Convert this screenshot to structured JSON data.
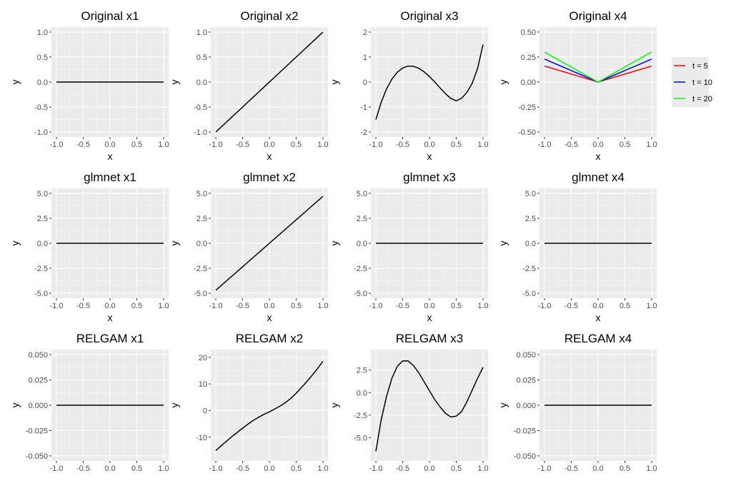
{
  "colors": {
    "panel_bg": "#ebebeb",
    "grid_major": "#ffffff",
    "grid_minor": "#f5f5f5",
    "tick_text": "#4d4d4d",
    "line_default": "#000000",
    "t5": "#ff0000",
    "t10": "#0000ff",
    "t20": "#00ff00"
  },
  "chart_data": [
    {
      "type": "line",
      "title": "Original x1",
      "xlabel": "x",
      "ylabel": "y",
      "xlim": [
        -1.0,
        1.0
      ],
      "ylim": [
        -1.0,
        1.0
      ],
      "xticks": [
        "-1.0",
        "-0.5",
        "0.0",
        "0.5",
        "1.0"
      ],
      "yticks": [
        "-1.0",
        "-0.5",
        "0.0",
        "0.5",
        "1.0"
      ],
      "series": [
        {
          "x": [
            -1.0,
            1.0
          ],
          "y": [
            0,
            0
          ],
          "color": "#000000"
        }
      ]
    },
    {
      "type": "line",
      "title": "Original x2",
      "xlabel": "x",
      "ylabel": "y",
      "xlim": [
        -1.0,
        1.0
      ],
      "ylim": [
        -1.0,
        1.0
      ],
      "xticks": [
        "-1.0",
        "-0.5",
        "0.0",
        "0.5",
        "1.0"
      ],
      "yticks": [
        "-1.0",
        "-0.5",
        "0.0",
        "0.5",
        "1.0"
      ],
      "series": [
        {
          "x": [
            -1.0,
            1.0
          ],
          "y": [
            -1.0,
            1.0
          ],
          "color": "#000000"
        }
      ]
    },
    {
      "type": "line",
      "title": "Original x3",
      "xlabel": "x",
      "ylabel": "y",
      "xlim": [
        -1.0,
        1.0
      ],
      "ylim": [
        -2.0,
        2.0
      ],
      "xticks": [
        "-1.0",
        "-0.5",
        "0.0",
        "0.5",
        "1.0"
      ],
      "yticks": [
        "-2",
        "-1",
        "0",
        "1",
        "2"
      ],
      "series": [
        {
          "x": [
            -1.0,
            -0.9,
            -0.8,
            -0.7,
            -0.6,
            -0.5,
            -0.4,
            -0.3,
            -0.2,
            -0.1,
            0.0,
            0.1,
            0.2,
            0.3,
            0.4,
            0.5,
            0.6,
            0.7,
            0.8,
            0.9,
            1.0
          ],
          "y": [
            -1.5,
            -0.81,
            -0.27,
            0.12,
            0.39,
            0.56,
            0.64,
            0.63,
            0.55,
            0.41,
            0.22,
            0.0,
            -0.24,
            -0.47,
            -0.66,
            -0.75,
            -0.65,
            -0.41,
            -0.04,
            0.56,
            1.5
          ],
          "color": "#000000"
        }
      ]
    },
    {
      "type": "line",
      "title": "Original x4",
      "xlabel": "x",
      "ylabel": "y",
      "xlim": [
        -1.0,
        1.0
      ],
      "ylim": [
        -0.5,
        0.5
      ],
      "xticks": [
        "-1.0",
        "-0.5",
        "0.0",
        "0.5",
        "1.0"
      ],
      "yticks": [
        "-0.50",
        "-0.25",
        "0.00",
        "0.25",
        "0.50"
      ],
      "legend": {
        "position": "right",
        "entries": [
          "t = 5",
          "t = 10",
          "t = 20"
        ]
      },
      "series": [
        {
          "name": "t = 5",
          "x": [
            -1.0,
            0.0,
            1.0
          ],
          "y": [
            0.16,
            0.0,
            0.16
          ],
          "color": "#ff0000"
        },
        {
          "name": "t = 10",
          "x": [
            -1.0,
            0.0,
            1.0
          ],
          "y": [
            0.23,
            0.0,
            0.23
          ],
          "color": "#0000ff"
        },
        {
          "name": "t = 20",
          "x": [
            -1.0,
            0.0,
            1.0
          ],
          "y": [
            0.3,
            0.0,
            0.3
          ],
          "color": "#00ff00"
        }
      ]
    },
    {
      "type": "line",
      "title": "glmnet x1",
      "xlabel": "x",
      "ylabel": "y",
      "xlim": [
        -1.0,
        1.0
      ],
      "ylim": [
        -5.0,
        5.0
      ],
      "xticks": [
        "-1.0",
        "-0.5",
        "0.0",
        "0.5",
        "1.0"
      ],
      "yticks": [
        "-5.0",
        "-2.5",
        "0.0",
        "2.5",
        "5.0"
      ],
      "series": [
        {
          "x": [
            -1.0,
            1.0
          ],
          "y": [
            0,
            0
          ],
          "color": "#000000"
        }
      ]
    },
    {
      "type": "line",
      "title": "glmnet x2",
      "xlabel": "x",
      "ylabel": "y",
      "xlim": [
        -1.0,
        1.0
      ],
      "ylim": [
        -5.0,
        5.0
      ],
      "xticks": [
        "-1.0",
        "-0.5",
        "0.0",
        "0.5",
        "1.0"
      ],
      "yticks": [
        "-5.0",
        "-2.5",
        "0.0",
        "2.5",
        "5.0"
      ],
      "series": [
        {
          "x": [
            -1.0,
            1.0
          ],
          "y": [
            -4.7,
            4.7
          ],
          "color": "#000000"
        }
      ]
    },
    {
      "type": "line",
      "title": "glmnet x3",
      "xlabel": "x",
      "ylabel": "y",
      "xlim": [
        -1.0,
        1.0
      ],
      "ylim": [
        -5.0,
        5.0
      ],
      "xticks": [
        "-1.0",
        "-0.5",
        "0.0",
        "0.5",
        "1.0"
      ],
      "yticks": [
        "-5.0",
        "-2.5",
        "0.0",
        "2.5",
        "5.0"
      ],
      "series": [
        {
          "x": [
            -1.0,
            1.0
          ],
          "y": [
            0,
            0
          ],
          "color": "#000000"
        }
      ]
    },
    {
      "type": "line",
      "title": "glmnet x4",
      "xlabel": "x",
      "ylabel": "y",
      "xlim": [
        -1.0,
        1.0
      ],
      "ylim": [
        -5.0,
        5.0
      ],
      "xticks": [
        "-1.0",
        "-0.5",
        "0.0",
        "0.5",
        "1.0"
      ],
      "yticks": [
        "-5.0",
        "-2.5",
        "0.0",
        "2.5",
        "5.0"
      ],
      "series": [
        {
          "x": [
            -1.0,
            1.0
          ],
          "y": [
            0,
            0
          ],
          "color": "#000000"
        }
      ]
    },
    {
      "type": "line",
      "title": "RELGAM x1",
      "xlabel": "",
      "ylabel": "y",
      "xlim": [
        -1.0,
        1.0
      ],
      "ylim": [
        -0.05,
        0.05
      ],
      "xticks": [
        "-1.0",
        "-0.5",
        "0.0",
        "0.5",
        "1.0"
      ],
      "yticks": [
        "-0.050",
        "-0.025",
        "0.000",
        "0.025",
        "0.050"
      ],
      "series": [
        {
          "x": [
            -1.0,
            1.0
          ],
          "y": [
            0,
            0
          ],
          "color": "#000000"
        }
      ]
    },
    {
      "type": "line",
      "title": "RELGAM x2",
      "xlabel": "",
      "ylabel": "y",
      "xlim": [
        -1.0,
        1.0
      ],
      "ylim": [
        -17.0,
        21.0
      ],
      "xticks": [
        "-1.0",
        "-0.5",
        "0.0",
        "0.5",
        "1.0"
      ],
      "yticks": [
        "-10",
        "0",
        "10",
        "20"
      ],
      "ytickvals": [
        -10,
        0,
        10,
        20
      ],
      "series": [
        {
          "x": [
            -1.0,
            -0.9,
            -0.8,
            -0.7,
            -0.6,
            -0.5,
            -0.4,
            -0.3,
            -0.2,
            -0.1,
            0.0,
            0.1,
            0.2,
            0.3,
            0.4,
            0.5,
            0.6,
            0.7,
            0.8,
            0.9,
            1.0
          ],
          "y": [
            -15.0,
            -13.2,
            -11.5,
            -9.8,
            -8.2,
            -6.6,
            -5.1,
            -3.7,
            -2.5,
            -1.4,
            -0.5,
            0.6,
            1.7,
            3.0,
            4.6,
            6.5,
            8.7,
            10.9,
            13.3,
            15.8,
            18.5
          ],
          "color": "#000000"
        }
      ]
    },
    {
      "type": "line",
      "title": "RELGAM x3",
      "xlabel": "",
      "ylabel": "y",
      "xlim": [
        -1.0,
        1.0
      ],
      "ylim": [
        -7.0,
        4.2
      ],
      "xticks": [
        "-1.0",
        "-0.5",
        "0.0",
        "0.5",
        "1.0"
      ],
      "yticks": [
        "-5.0",
        "-2.5",
        "0.0",
        "2.5"
      ],
      "ytickvals": [
        -5.0,
        -2.5,
        0.0,
        2.5
      ],
      "series": [
        {
          "x": [
            -1.0,
            -0.9,
            -0.8,
            -0.7,
            -0.6,
            -0.5,
            -0.4,
            -0.3,
            -0.2,
            -0.1,
            0.0,
            0.1,
            0.2,
            0.3,
            0.4,
            0.5,
            0.6,
            0.7,
            0.8,
            0.9,
            1.0
          ],
          "y": [
            -6.5,
            -3.0,
            -0.4,
            1.6,
            2.9,
            3.5,
            3.5,
            3.0,
            2.2,
            1.2,
            0.2,
            -0.8,
            -1.6,
            -2.3,
            -2.7,
            -2.6,
            -2.1,
            -1.0,
            0.3,
            1.6,
            2.8
          ],
          "color": "#000000"
        }
      ]
    },
    {
      "type": "line",
      "title": "RELGAM x4",
      "xlabel": "",
      "ylabel": "y",
      "xlim": [
        -1.0,
        1.0
      ],
      "ylim": [
        -0.05,
        0.05
      ],
      "xticks": [
        "-1.0",
        "-0.5",
        "0.0",
        "0.5",
        "1.0"
      ],
      "yticks": [
        "-0.050",
        "-0.025",
        "0.000",
        "0.025",
        "0.050"
      ],
      "series": [
        {
          "x": [
            -1.0,
            1.0
          ],
          "y": [
            0,
            0
          ],
          "color": "#000000"
        }
      ]
    }
  ]
}
